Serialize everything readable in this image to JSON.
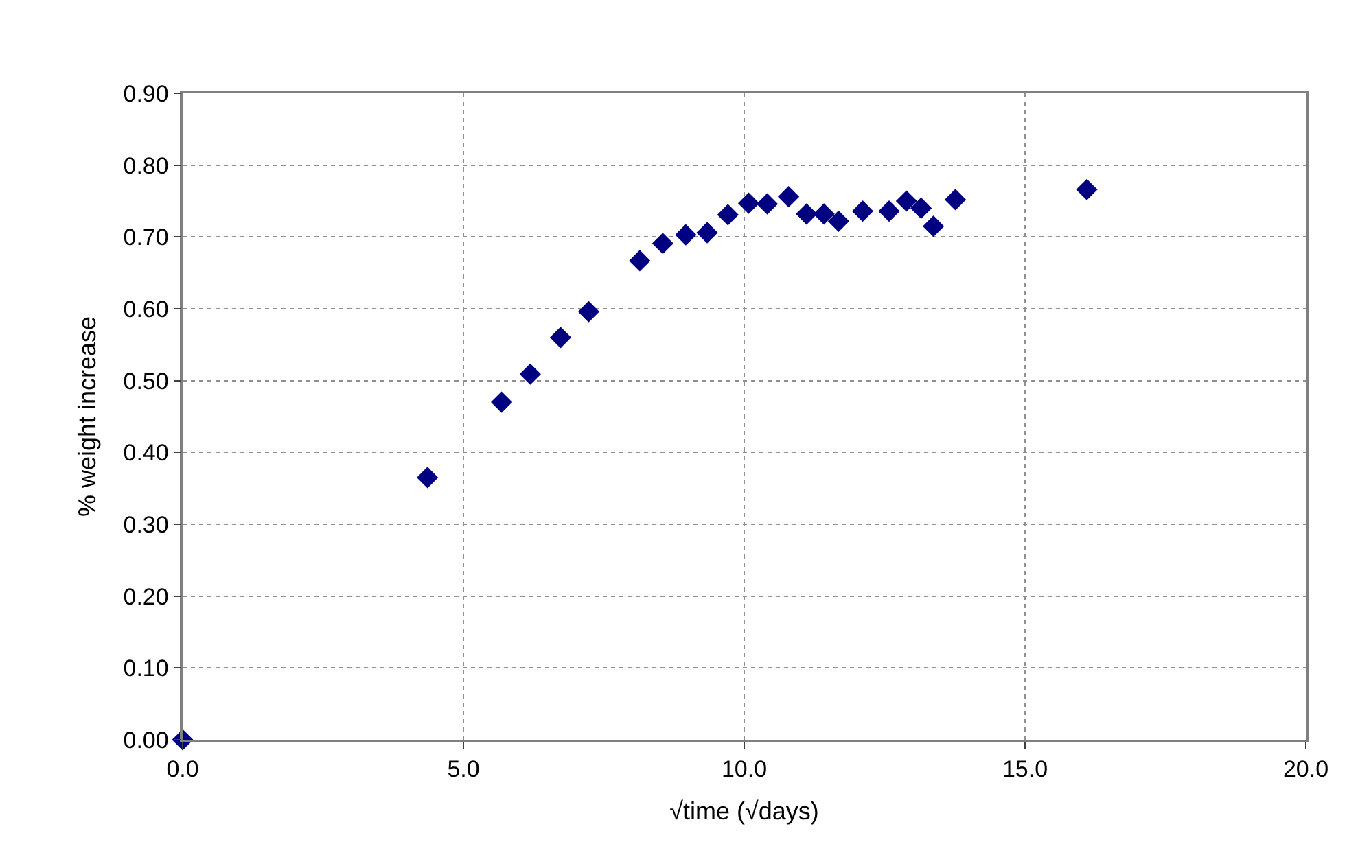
{
  "chart_data": {
    "type": "scatter",
    "xlabel": "√time (√days)",
    "ylabel": "% weight increase",
    "x": [
      0,
      4.36,
      5.68,
      6.19,
      6.73,
      7.23,
      8.14,
      8.55,
      8.96,
      9.34,
      9.71,
      10.08,
      10.41,
      10.79,
      11.11,
      11.42,
      11.68,
      12.11,
      12.58,
      12.89,
      13.15,
      13.37,
      13.76,
      16.1
    ],
    "series": [
      {
        "color": "#000080",
        "values": [
          0,
          0.365,
          0.47,
          0.509,
          0.56,
          0.596,
          0.667,
          0.691,
          0.703,
          0.706,
          0.731,
          0.747,
          0.746,
          0.756,
          0.732,
          0.732,
          0.722,
          0.736,
          0.736,
          0.75,
          0.74,
          0.715,
          0.752,
          0.766
        ]
      }
    ],
    "xlim": [
      0,
      20
    ],
    "xticks": [
      {
        "value": 0,
        "label": "0.0"
      },
      {
        "value": 5,
        "label": "5.0"
      },
      {
        "value": 10,
        "label": "10.0"
      },
      {
        "value": 15,
        "label": "15.0"
      },
      {
        "value": 20,
        "label": "20.0"
      }
    ],
    "ylim": [
      0,
      0.9
    ],
    "yticks": [
      {
        "value": 0,
        "label": "0.00"
      },
      {
        "value": 0.1,
        "label": "0.10"
      },
      {
        "value": 0.2,
        "label": "0.20"
      },
      {
        "value": 0.3,
        "label": "0.30"
      },
      {
        "value": 0.4,
        "label": "0.40"
      },
      {
        "value": 0.5,
        "label": "0.50"
      },
      {
        "value": 0.6,
        "label": "0.60"
      },
      {
        "value": 0.7,
        "label": "0.70"
      },
      {
        "value": 0.8,
        "label": "0.80"
      },
      {
        "value": 0.9,
        "label": "0.90"
      }
    ],
    "grid": true,
    "marker": "diamond",
    "legend": false
  }
}
